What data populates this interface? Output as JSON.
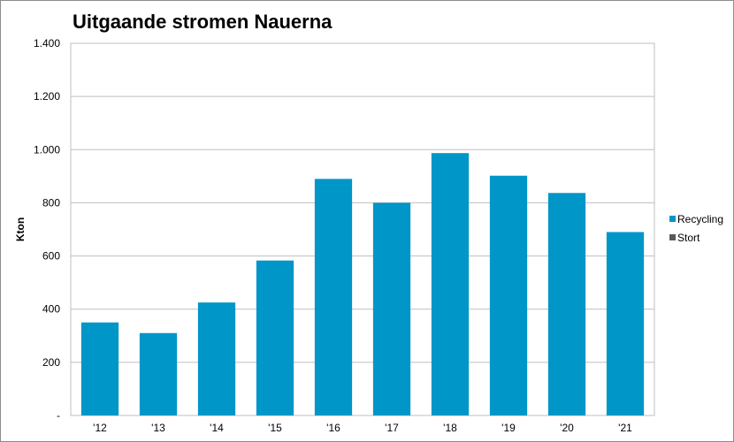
{
  "chart_data": {
    "type": "bar",
    "title": "Uitgaande stromen Nauerna",
    "ylabel": "Kton",
    "xlabel": "",
    "categories": [
      "'12",
      "'13",
      "'14",
      "'15",
      "'16",
      "'17",
      "'18",
      "'19",
      "'20",
      "'21"
    ],
    "series": [
      {
        "name": "Recycling",
        "color": "#0096c8",
        "values": [
          350,
          310,
          425,
          583,
          890,
          800,
          987,
          902,
          837,
          690
        ]
      },
      {
        "name": "Stort",
        "color": "#595959",
        "values": [
          0,
          0,
          0,
          0,
          0,
          0,
          0,
          0,
          0,
          0
        ]
      }
    ],
    "ylim": [
      0,
      1400
    ],
    "yticks": [
      {
        "value": 0,
        "label": "-"
      },
      {
        "value": 200,
        "label": "200"
      },
      {
        "value": 400,
        "label": "400"
      },
      {
        "value": 600,
        "label": "600"
      },
      {
        "value": 800,
        "label": "800"
      },
      {
        "value": 1000,
        "label": "1.000"
      },
      {
        "value": 1200,
        "label": "1.200"
      },
      {
        "value": 1400,
        "label": "1.400"
      }
    ],
    "grid": true,
    "legend": "right"
  }
}
